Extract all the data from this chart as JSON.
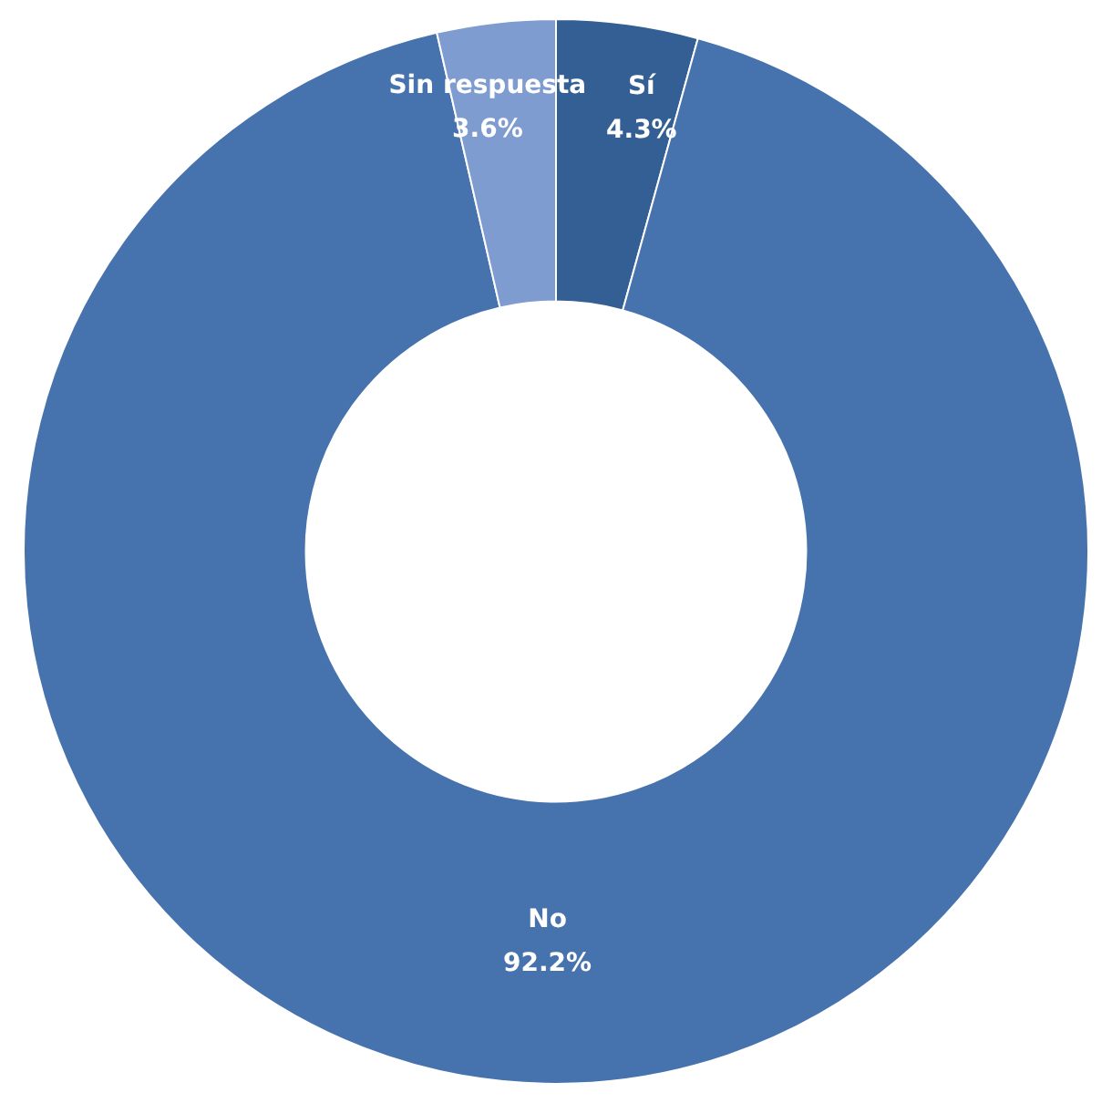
{
  "chart_data": {
    "type": "donut",
    "categories": [
      "Sí",
      "No",
      "Sin respuesta"
    ],
    "values": [
      4.3,
      92.2,
      3.6
    ],
    "colors": [
      "#335f94",
      "#4673ad",
      "#7e9ccf"
    ],
    "value_labels": [
      "4.3%",
      "92.2%",
      "3.6%"
    ],
    "legend": false
  }
}
